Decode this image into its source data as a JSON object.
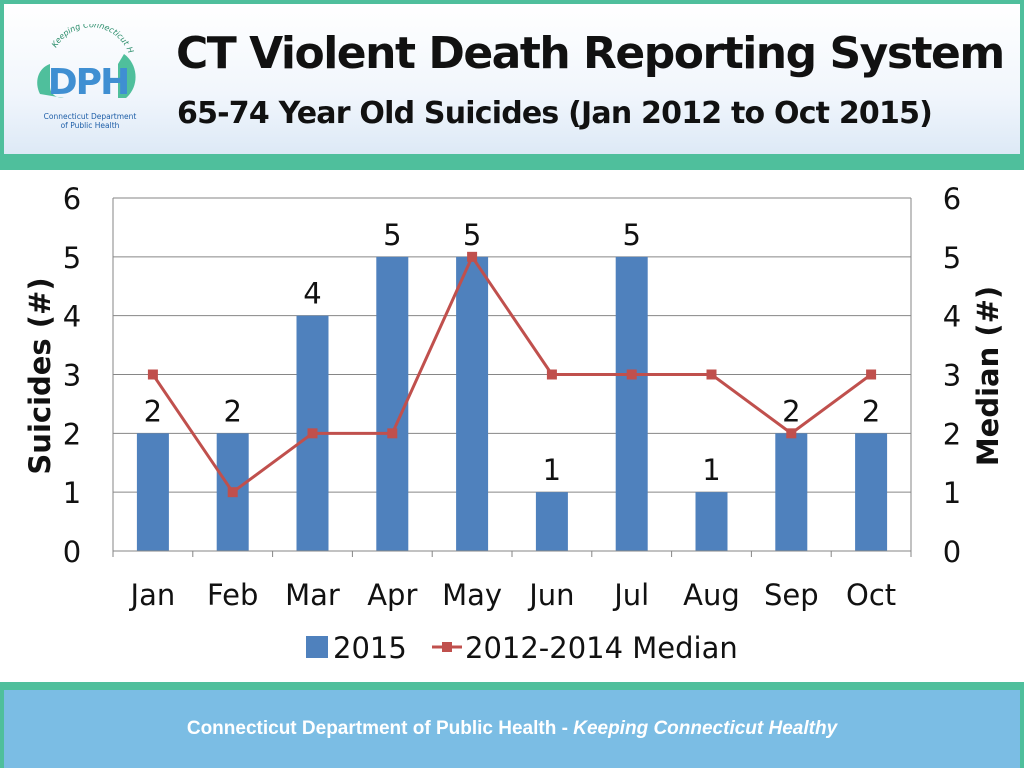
{
  "header": {
    "title": "CT Violent Death Reporting System",
    "subtitle": "65-74 Year Old Suicides (Jan 2012 to Oct 2015)",
    "logo": {
      "abbr": "DPH",
      "arc_text": "Keeping Connecticut Healthy",
      "line1": "Connecticut Department",
      "line2": "of Public Health"
    }
  },
  "footer": {
    "org": "Connecticut Department of Public Health",
    "separator": " - ",
    "tagline": "Keeping Connecticut Healthy"
  },
  "colors": {
    "bar": "#4f81bd",
    "line": "#c0504d",
    "accent_band": "#4fbf9c",
    "footer_fill": "#7bbde4"
  },
  "chart_data": {
    "type": "bar",
    "categories": [
      "Jan",
      "Feb",
      "Mar",
      "Apr",
      "May",
      "Jun",
      "Jul",
      "Aug",
      "Sep",
      "Oct"
    ],
    "series": [
      {
        "name": "2015",
        "type": "bar",
        "axis": "left",
        "values": [
          2,
          2,
          4,
          5,
          5,
          1,
          5,
          1,
          2,
          2
        ]
      },
      {
        "name": "2012-2014 Median",
        "type": "line",
        "axis": "right",
        "values": [
          3,
          1,
          2,
          2,
          5,
          3,
          3,
          3,
          2,
          3
        ]
      }
    ],
    "ylabel": "Suicides (#)",
    "y2label": "Median (#)",
    "ylim": [
      0,
      6
    ],
    "y2lim": [
      0,
      6
    ],
    "yticks": [
      "0",
      "1",
      "2",
      "3",
      "4",
      "5",
      "6"
    ],
    "grid": true,
    "data_labels": "bars",
    "legend": "bottom"
  }
}
